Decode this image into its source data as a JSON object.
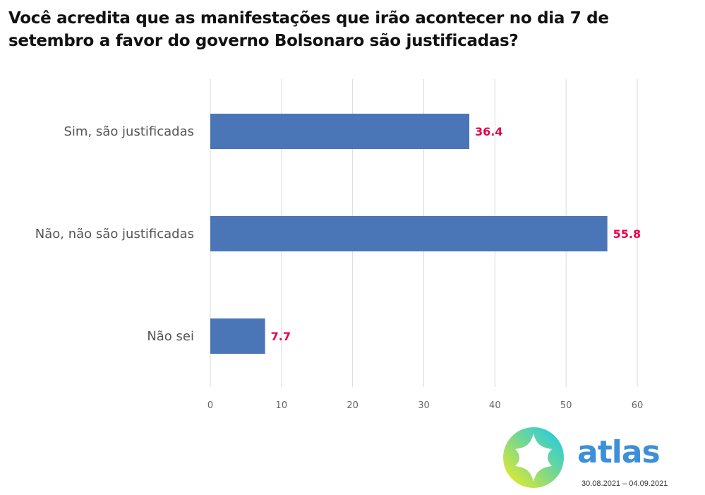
{
  "title": "Você acredita que as manifestações que irão acontecer no dia 7 de setembro a favor do governo Bolsonaro são justificadas?",
  "chart_data": {
    "type": "bar",
    "orientation": "horizontal",
    "title": "Você acredita que as manifestações que irão acontecer no dia 7 de setembro a favor do governo Bolsonaro são justificadas?",
    "categories": [
      "Sim, são justificadas",
      "Não, não são justificadas",
      "Não sei"
    ],
    "values": [
      36.4,
      55.8,
      7.7
    ],
    "value_labels": [
      "36.4",
      "55.8",
      "7.7"
    ],
    "xlim": [
      0,
      60
    ],
    "xticks": [
      0,
      10,
      20,
      30,
      40,
      50,
      60
    ],
    "xlabel": "",
    "ylabel": "",
    "grid": true,
    "bar_color": "#4a76b8",
    "label_color": "#e8004a"
  },
  "brand": {
    "name": "atlas",
    "color": "#3d8fd9",
    "dates": "30.08.2021 – 04.09.2021"
  }
}
